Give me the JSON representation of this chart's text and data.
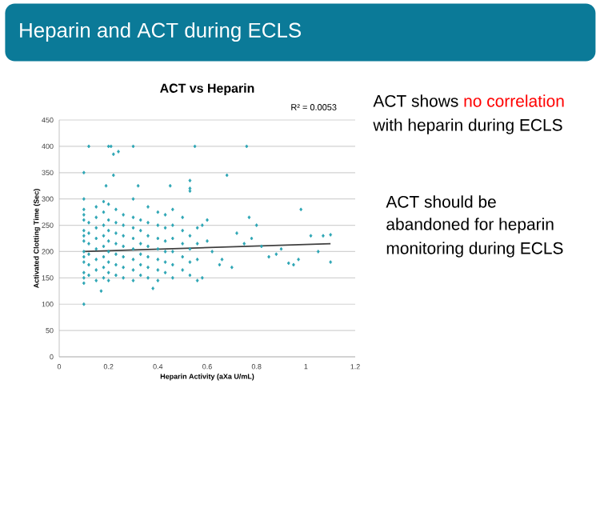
{
  "chart_data": {
    "type": "scatter",
    "title": "ACT vs Heparin",
    "xlabel": "Heparin Activity  (aXa U/mL)",
    "ylabel": "Activated Clotting Time (Sec)",
    "annotations": [
      "Heparin and ACT during ECLS",
      "R² = 0.0053",
      "ACT shows ",
      "no correlation",
      "with heparin during ECLS",
      "ACT should be",
      "abandoned for heparin",
      "monitoring during ECLS"
    ],
    "series": [
      {
        "marker": "diamond",
        "color": "#2ba5b4",
        "x": [
          0.1,
          0.1,
          0.1,
          0.1,
          0.1,
          0.1,
          0.1,
          0.1,
          0.1,
          0.1,
          0.1,
          0.1,
          0.1,
          0.12,
          0.12,
          0.12,
          0.12,
          0.12,
          0.12,
          0.15,
          0.15,
          0.15,
          0.15,
          0.15,
          0.15,
          0.15,
          0.15,
          0.18,
          0.18,
          0.18,
          0.18,
          0.18,
          0.18,
          0.18,
          0.18,
          0.2,
          0.2,
          0.2,
          0.2,
          0.2,
          0.2,
          0.2,
          0.2,
          0.23,
          0.23,
          0.23,
          0.23,
          0.23,
          0.23,
          0.23,
          0.26,
          0.26,
          0.26,
          0.26,
          0.26,
          0.26,
          0.26,
          0.3,
          0.3,
          0.3,
          0.3,
          0.3,
          0.3,
          0.3,
          0.3,
          0.33,
          0.33,
          0.33,
          0.33,
          0.33,
          0.33,
          0.36,
          0.36,
          0.36,
          0.36,
          0.36,
          0.36,
          0.36,
          0.4,
          0.4,
          0.4,
          0.4,
          0.4,
          0.4,
          0.4,
          0.43,
          0.43,
          0.43,
          0.43,
          0.43,
          0.43,
          0.46,
          0.46,
          0.46,
          0.46,
          0.46,
          0.46,
          0.5,
          0.5,
          0.5,
          0.5,
          0.5,
          0.53,
          0.53,
          0.53,
          0.53,
          0.56,
          0.56,
          0.56,
          0.56,
          0.12,
          0.2,
          0.21,
          0.22,
          0.24,
          0.3,
          0.55,
          0.76,
          0.1,
          0.1,
          0.22,
          0.68,
          0.17,
          0.38,
          0.53,
          0.53,
          0.53,
          0.19,
          0.32,
          0.45,
          0.98,
          1.1,
          1.1,
          1.07,
          1.05,
          1.02,
          0.97,
          0.93,
          0.95,
          0.8,
          0.77,
          0.82,
          0.85,
          0.72,
          0.7,
          0.65,
          0.6,
          0.6,
          0.58,
          0.58,
          0.62,
          0.66,
          0.75,
          0.78,
          0.88,
          0.9
        ],
        "values": [
          140,
          160,
          180,
          200,
          220,
          240,
          260,
          280,
          300,
          150,
          190,
          230,
          270,
          155,
          175,
          195,
          215,
          235,
          255,
          145,
          165,
          185,
          205,
          225,
          245,
          265,
          285,
          150,
          170,
          190,
          210,
          230,
          250,
          275,
          295,
          145,
          160,
          180,
          200,
          220,
          240,
          260,
          290,
          155,
          175,
          195,
          215,
          235,
          255,
          280,
          150,
          170,
          190,
          210,
          230,
          250,
          270,
          145,
          165,
          185,
          205,
          225,
          245,
          265,
          300,
          155,
          175,
          195,
          215,
          240,
          260,
          150,
          170,
          190,
          210,
          230,
          255,
          285,
          145,
          165,
          185,
          205,
          225,
          250,
          275,
          160,
          180,
          200,
          220,
          245,
          270,
          150,
          175,
          200,
          225,
          250,
          280,
          165,
          190,
          215,
          240,
          265,
          155,
          180,
          205,
          230,
          145,
          185,
          215,
          245,
          400,
          400,
          400,
          385,
          390,
          400,
          400,
          400,
          350,
          100,
          345,
          345,
          125,
          130,
          335,
          320,
          315,
          325,
          325,
          325,
          280,
          232,
          180,
          230,
          200,
          230,
          185,
          178,
          175,
          250,
          265,
          210,
          190,
          235,
          170,
          175,
          220,
          260,
          250,
          150,
          200,
          185,
          215,
          225,
          195,
          205
        ]
      },
      {
        "type": "line",
        "color": "#404040",
        "x": [
          0.1,
          1.1
        ],
        "values": [
          200,
          215
        ]
      }
    ],
    "grid": "y",
    "xlim": [
      0,
      1.2
    ],
    "xticks": [
      0,
      0.2,
      0.4,
      0.6,
      0.8,
      1,
      1.2
    ],
    "ylim": [
      0,
      450
    ],
    "yticks": [
      0,
      50,
      100,
      150,
      200,
      250,
      300,
      350,
      400,
      450
    ]
  }
}
